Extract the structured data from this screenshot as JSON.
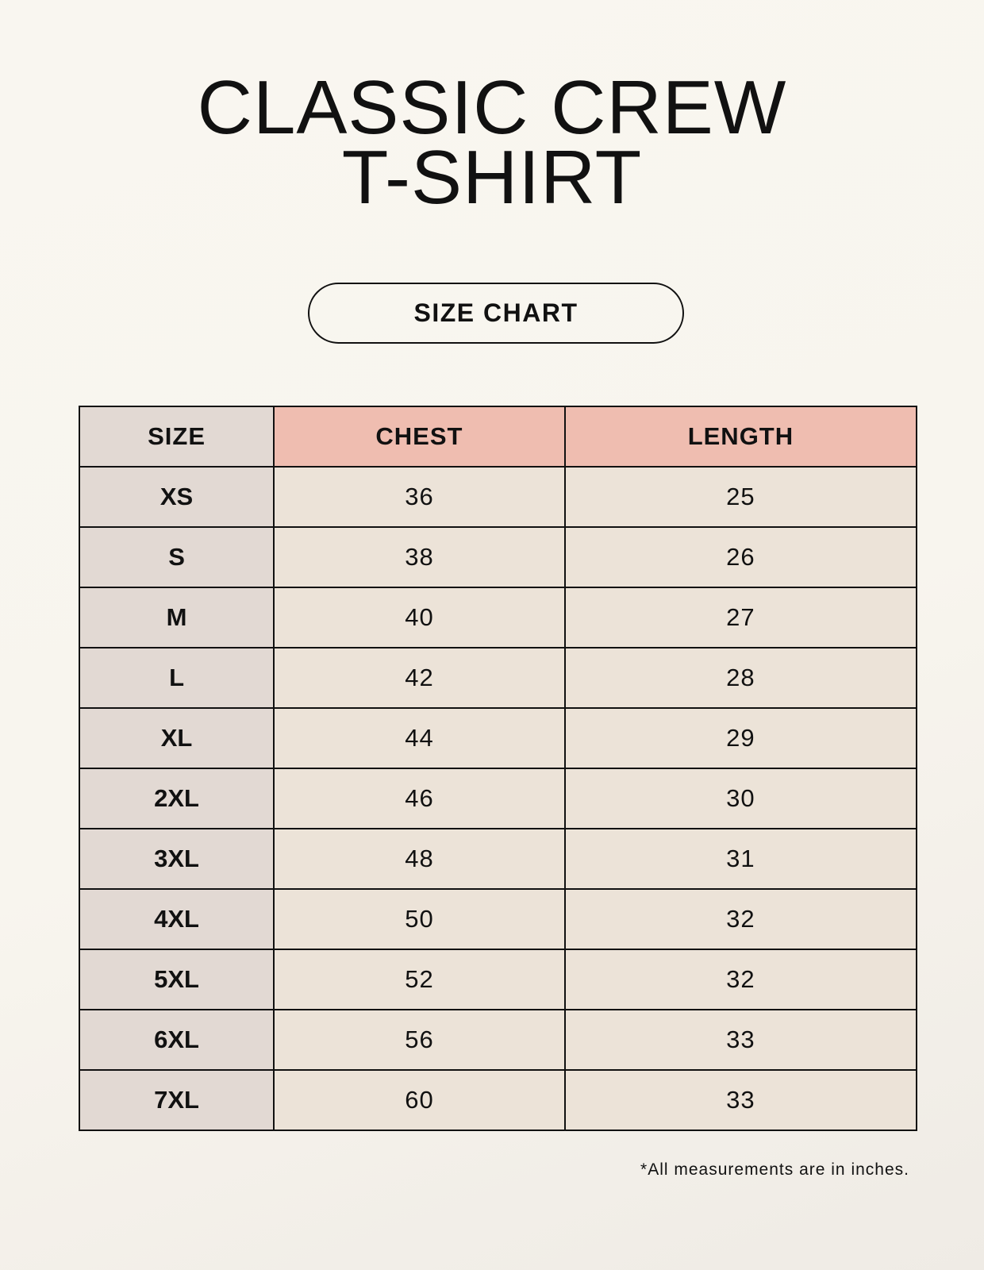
{
  "title": {
    "line1": "CLASSIC CREW",
    "line2": "T-SHIRT"
  },
  "subtitle": "SIZE CHART",
  "table": {
    "headers": [
      "SIZE",
      "CHEST",
      "LENGTH"
    ],
    "rows": [
      [
        "XS",
        "36",
        "25"
      ],
      [
        "S",
        "38",
        "26"
      ],
      [
        "M",
        "40",
        "27"
      ],
      [
        "L",
        "42",
        "28"
      ],
      [
        "XL",
        "44",
        "29"
      ],
      [
        "2XL",
        "46",
        "30"
      ],
      [
        "3XL",
        "48",
        "31"
      ],
      [
        "4XL",
        "50",
        "32"
      ],
      [
        "5XL",
        "52",
        "32"
      ],
      [
        "6XL",
        "56",
        "33"
      ],
      [
        "7XL",
        "60",
        "33"
      ]
    ]
  },
  "footnote": "*All measurements are in inches.",
  "colors": {
    "size_column": "#e2d9d3",
    "header_accent": "#efbdb0",
    "value_cells": "#ece3d8"
  }
}
